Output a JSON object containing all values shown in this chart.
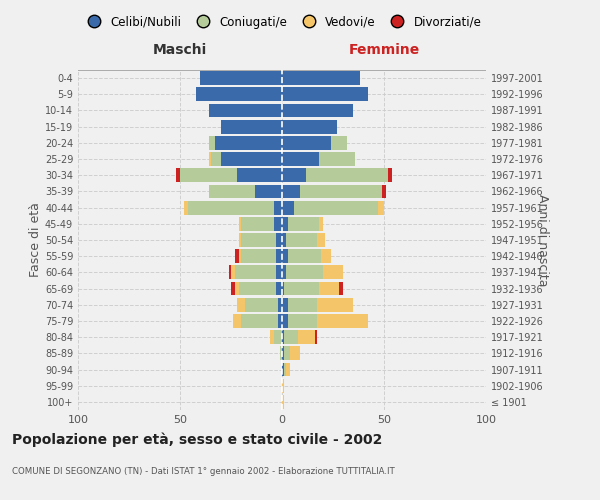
{
  "age_groups": [
    "100+",
    "95-99",
    "90-94",
    "85-89",
    "80-84",
    "75-79",
    "70-74",
    "65-69",
    "60-64",
    "55-59",
    "50-54",
    "45-49",
    "40-44",
    "35-39",
    "30-34",
    "25-29",
    "20-24",
    "15-19",
    "10-14",
    "5-9",
    "0-4"
  ],
  "birth_years": [
    "≤ 1901",
    "1902-1906",
    "1907-1911",
    "1912-1916",
    "1917-1921",
    "1922-1926",
    "1927-1931",
    "1932-1936",
    "1937-1941",
    "1942-1946",
    "1947-1951",
    "1952-1956",
    "1957-1961",
    "1962-1966",
    "1967-1971",
    "1972-1976",
    "1977-1981",
    "1982-1986",
    "1987-1991",
    "1992-1996",
    "1997-2001"
  ],
  "colors": {
    "celibi": "#3a6aaa",
    "coniugati": "#b5cb9a",
    "vedovi": "#f5c56a",
    "divorziati": "#cc2222"
  },
  "males": {
    "celibi": [
      0,
      0,
      0,
      0,
      0,
      2,
      2,
      3,
      3,
      3,
      3,
      4,
      4,
      13,
      22,
      30,
      33,
      30,
      36,
      42,
      40
    ],
    "coniugati": [
      0,
      0,
      0,
      1,
      4,
      18,
      16,
      18,
      20,
      17,
      17,
      16,
      42,
      23,
      28,
      5,
      3,
      0,
      0,
      0,
      0
    ],
    "vedovi": [
      0,
      0,
      0,
      0,
      2,
      4,
      4,
      2,
      2,
      1,
      1,
      1,
      2,
      0,
      0,
      1,
      0,
      0,
      0,
      0,
      0
    ],
    "divorziati": [
      0,
      0,
      0,
      0,
      0,
      0,
      0,
      2,
      1,
      2,
      0,
      0,
      0,
      0,
      2,
      0,
      0,
      0,
      0,
      0,
      0
    ]
  },
  "females": {
    "celibi": [
      0,
      0,
      1,
      1,
      1,
      3,
      3,
      1,
      2,
      3,
      2,
      3,
      6,
      9,
      12,
      18,
      24,
      27,
      35,
      42,
      38
    ],
    "coniugati": [
      0,
      0,
      1,
      3,
      7,
      14,
      14,
      17,
      18,
      16,
      15,
      15,
      41,
      40,
      40,
      18,
      8,
      0,
      0,
      0,
      0
    ],
    "vedovi": [
      1,
      1,
      2,
      5,
      8,
      25,
      18,
      10,
      10,
      5,
      4,
      2,
      3,
      0,
      0,
      0,
      0,
      0,
      0,
      0,
      0
    ],
    "divorziati": [
      0,
      0,
      0,
      0,
      1,
      0,
      0,
      2,
      0,
      0,
      0,
      0,
      0,
      2,
      2,
      0,
      0,
      0,
      0,
      0,
      0
    ]
  },
  "xlim": 100,
  "title": "Popolazione per età, sesso e stato civile - 2002",
  "subtitle": "COMUNE DI SEGONZANO (TN) - Dati ISTAT 1° gennaio 2002 - Elaborazione TUTTITALIA.IT",
  "xlabel_left": "Maschi",
  "xlabel_right": "Femmine",
  "ylabel_left": "Fasce di età",
  "ylabel_right": "Anni di nascita",
  "bg_color": "#f0f0f0",
  "grid_color": "#cccccc",
  "legend_labels": [
    "Celibi/Nubili",
    "Coniugati/e",
    "Vedovi/e",
    "Divorziati/e"
  ]
}
